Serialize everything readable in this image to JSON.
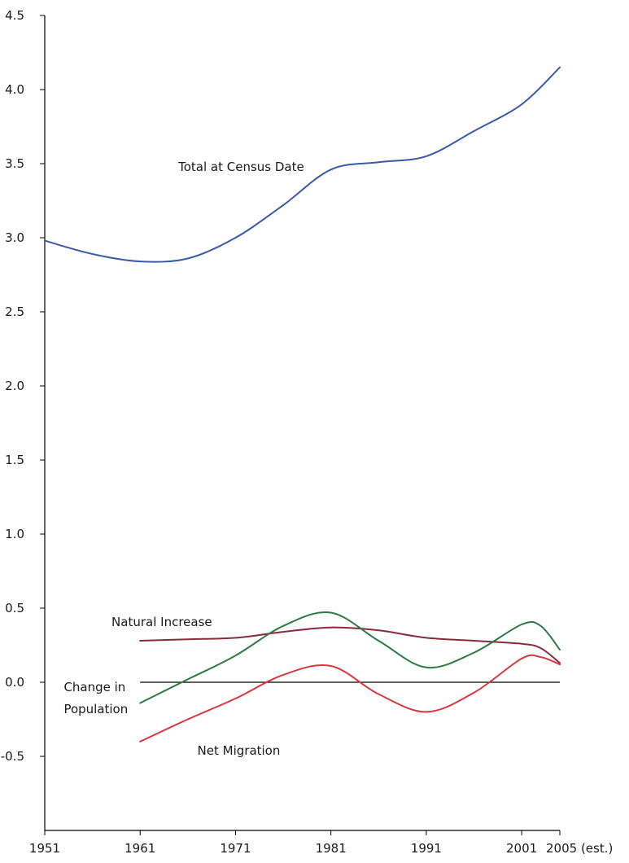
{
  "chart_data": {
    "type": "line",
    "title": "",
    "xlabel": "",
    "ylabel": "",
    "xlim": [
      1951,
      2005
    ],
    "ylim": [
      -1.0,
      4.5
    ],
    "grid": false,
    "legend": "none",
    "x_ticks": [
      {
        "value": 1951,
        "label": "1951"
      },
      {
        "value": 1961,
        "label": "1961"
      },
      {
        "value": 1971,
        "label": "1971"
      },
      {
        "value": 1981,
        "label": "1981"
      },
      {
        "value": 1991,
        "label": "1991"
      },
      {
        "value": 2001,
        "label": "2001"
      },
      {
        "value": 2005,
        "label": "2005 (est.)"
      }
    ],
    "y_ticks": [
      {
        "value": 4.5,
        "label": "4.5"
      },
      {
        "value": 4.0,
        "label": "4.0"
      },
      {
        "value": 3.5,
        "label": "3.5"
      },
      {
        "value": 3.0,
        "label": "3.0"
      },
      {
        "value": 2.5,
        "label": "2.5"
      },
      {
        "value": 2.0,
        "label": "2.0"
      },
      {
        "value": 1.5,
        "label": "1.5"
      },
      {
        "value": 1.0,
        "label": "1.0"
      },
      {
        "value": 0.5,
        "label": "0.5"
      },
      {
        "value": 0.0,
        "label": "0.0"
      },
      {
        "value": -0.5,
        "label": "-0.5"
      }
    ],
    "series": [
      {
        "name": "Total at Census Date",
        "color": "#3a5aa8",
        "x": [
          1951,
          1956,
          1961,
          1966,
          1971,
          1976,
          1981,
          1986,
          1991,
          1996,
          2001,
          2005
        ],
        "y": [
          2.98,
          2.89,
          2.84,
          2.86,
          3.0,
          3.22,
          3.46,
          3.51,
          3.55,
          3.72,
          3.9,
          4.15
        ]
      },
      {
        "name": "Natural Increase",
        "color": "#8a2b3a",
        "x": [
          1961,
          1966,
          1971,
          1976,
          1981,
          1986,
          1991,
          1996,
          2001,
          2003,
          2005
        ],
        "y": [
          0.28,
          0.29,
          0.3,
          0.34,
          0.37,
          0.35,
          0.3,
          0.28,
          0.26,
          0.23,
          0.13
        ]
      },
      {
        "name": "Change in\nPopulation",
        "color": "#2d7a45",
        "x": [
          1961,
          1966,
          1971,
          1976,
          1981,
          1986,
          1991,
          1996,
          2001,
          2003,
          2005
        ],
        "y": [
          -0.14,
          0.02,
          0.18,
          0.38,
          0.47,
          0.28,
          0.1,
          0.2,
          0.39,
          0.38,
          0.22
        ]
      },
      {
        "name": "Net Migration",
        "color": "#d9373f",
        "x": [
          1961,
          1966,
          1971,
          1976,
          1981,
          1986,
          1991,
          1996,
          2001,
          2003,
          2005
        ],
        "y": [
          -0.4,
          -0.25,
          -0.11,
          0.05,
          0.11,
          -0.08,
          -0.2,
          -0.07,
          0.16,
          0.17,
          0.12
        ]
      }
    ],
    "annotations": [
      {
        "series": 0,
        "text": "Total at Census Date",
        "x": 1965,
        "y": 3.45
      },
      {
        "series": 1,
        "text": "Natural Increase",
        "x": 1958,
        "y": 0.38
      },
      {
        "series": 2,
        "text": "Change in",
        "x": 1953,
        "y": -0.06
      },
      {
        "series": 2,
        "text": "Population",
        "x": 1953,
        "y": -0.21
      },
      {
        "series": 3,
        "text": "Net Migration",
        "x": 1967,
        "y": -0.49
      }
    ]
  }
}
